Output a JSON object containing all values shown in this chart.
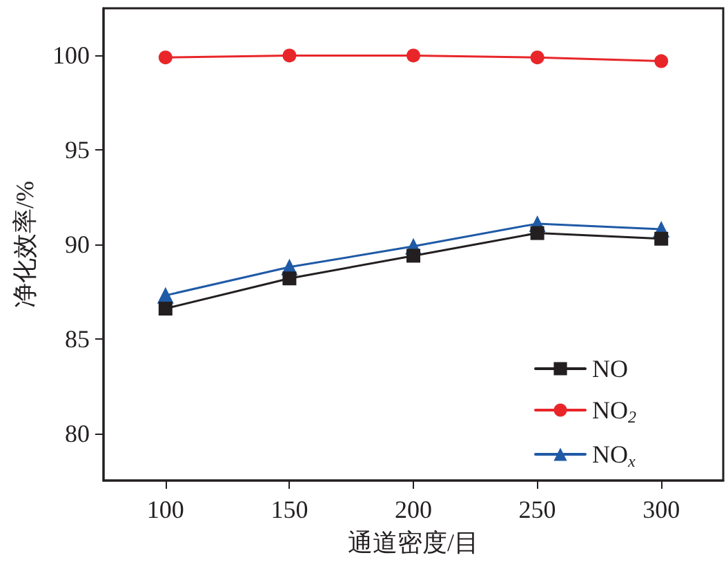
{
  "chart_data": {
    "type": "line",
    "xlabel": "通道密度/目",
    "ylabel": "净化效率/%",
    "x": [
      100,
      150,
      200,
      250,
      300
    ],
    "series": [
      {
        "name": "NO",
        "color": "#231f20",
        "marker": "square",
        "values": [
          86.6,
          88.2,
          89.4,
          90.6,
          90.3
        ]
      },
      {
        "name": "NO$_{2}$",
        "color": "#e8262a",
        "marker": "circle",
        "values": [
          99.9,
          100,
          100,
          99.9,
          99.7
        ]
      },
      {
        "name": "NO$_{x}$",
        "color": "#1f5aa6",
        "marker": "triangle",
        "values": [
          87.3,
          88.8,
          89.9,
          91.1,
          90.8
        ]
      }
    ],
    "xlim": [
      75,
      325
    ],
    "xticks": [
      100,
      150,
      200,
      250,
      300
    ],
    "ylim": [
      77.5,
      102.5
    ],
    "yticks": [
      80,
      85,
      90,
      95,
      100
    ],
    "grid": false,
    "legend": "bottom right",
    "line_style": "solid"
  }
}
